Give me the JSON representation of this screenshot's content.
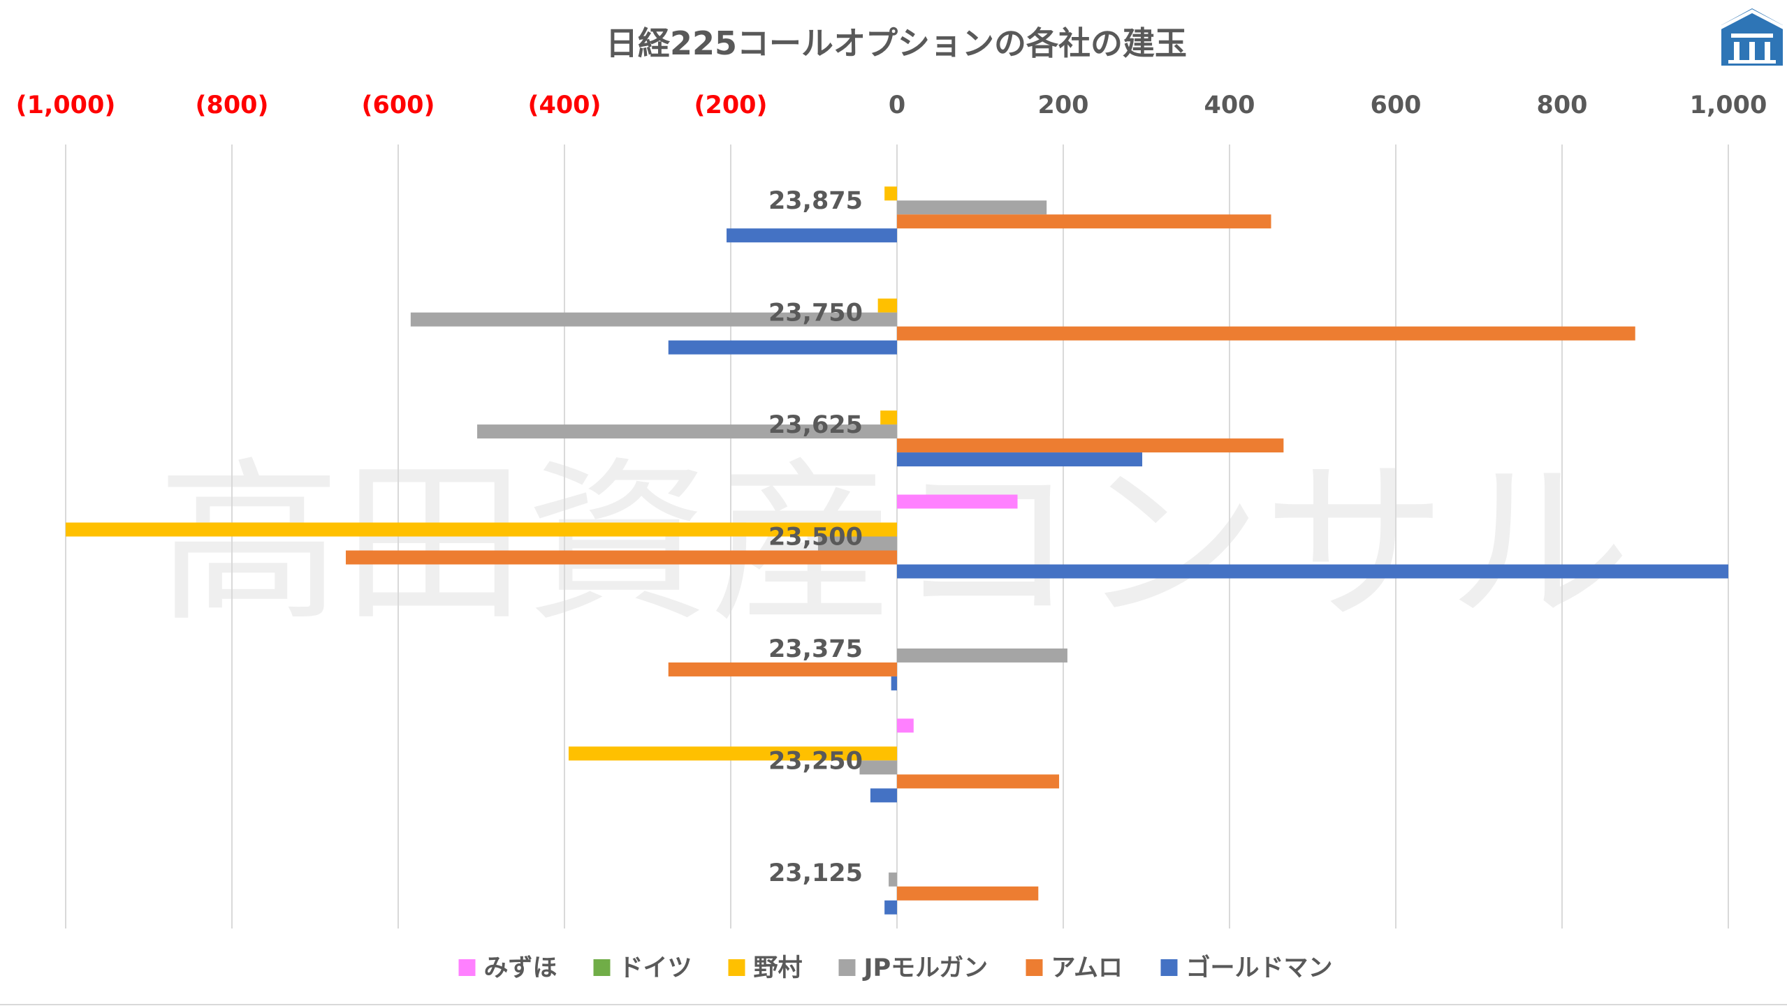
{
  "chart_data": {
    "type": "bar",
    "orientation": "horizontal",
    "title": "日経225コールオプションの各社の建玉",
    "watermark": "高田資産コンサル",
    "xlim": [
      -1000,
      1000
    ],
    "x_ticks": [
      {
        "value": -1000,
        "label": "(1,000)"
      },
      {
        "value": -800,
        "label": "(800)"
      },
      {
        "value": -600,
        "label": "(600)"
      },
      {
        "value": -400,
        "label": "(400)"
      },
      {
        "value": -200,
        "label": "(200)"
      },
      {
        "value": 0,
        "label": "0"
      },
      {
        "value": 200,
        "label": "200"
      },
      {
        "value": 400,
        "label": "400"
      },
      {
        "value": 600,
        "label": "600"
      },
      {
        "value": 800,
        "label": "800"
      },
      {
        "value": 1000,
        "label": "1,000"
      }
    ],
    "negative_tick_color": "#FF0000",
    "positive_tick_color": "#595959",
    "categories": [
      "23,875",
      "23,750",
      "23,625",
      "23,500",
      "23,375",
      "23,250",
      "23,125"
    ],
    "series": [
      {
        "name": "みずほ",
        "color": "#FF80FF",
        "values": [
          0,
          0,
          0,
          145,
          0,
          20,
          0
        ]
      },
      {
        "name": "ドイツ",
        "color": "#70AD47",
        "values": [
          0,
          0,
          0,
          0,
          0,
          0,
          0
        ]
      },
      {
        "name": "野村",
        "color": "#FFC000",
        "values": [
          -15,
          -23,
          -20,
          -1000,
          0,
          -395,
          0
        ]
      },
      {
        "name": "JPモルガン",
        "color": "#A5A5A5",
        "values": [
          180,
          -585,
          -505,
          -95,
          205,
          -45,
          -10
        ]
      },
      {
        "name": "アムロ",
        "color": "#ED7D31",
        "values": [
          450,
          888,
          465,
          -663,
          -275,
          195,
          170
        ]
      },
      {
        "name": "ゴールドマン",
        "color": "#4472C4",
        "values": [
          -205,
          -275,
          295,
          1000,
          -7,
          -32,
          -15
        ]
      }
    ],
    "grid": true,
    "legend_position": "bottom",
    "logo": "house-logo-icon"
  }
}
